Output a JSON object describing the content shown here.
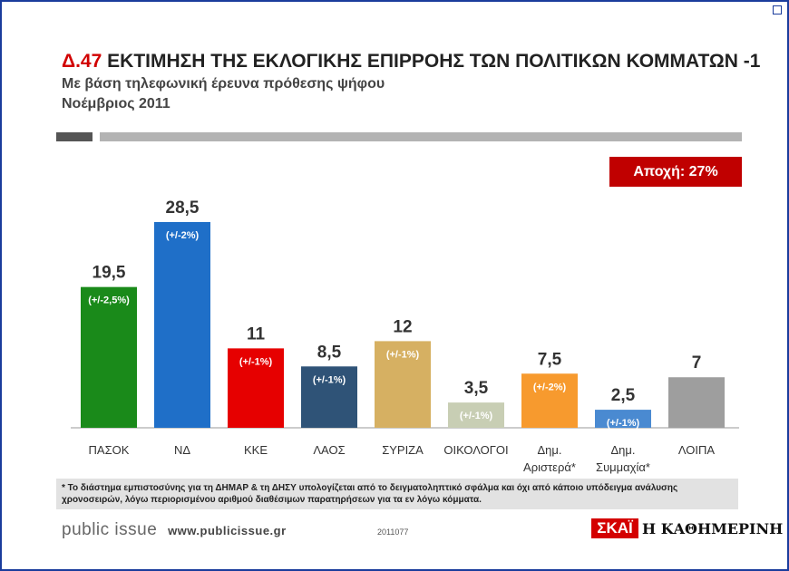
{
  "header": {
    "code": "Δ.47",
    "title": "ΕΚΤΙΜΗΣΗ ΤΗΣ ΕΚΛΟΓΙΚΗΣ ΕΠΙΡΡΟΗΣ ΤΩΝ ΠΟΛΙΤΙΚΩΝ ΚΟΜΜΑΤΩΝ -1",
    "subtitle": "Με βάση τηλεφωνική έρευνα πρόθεσης ψήφου",
    "date": "Νοέμβριος 2011"
  },
  "abstain_label": "Αποχή: 27%",
  "chart_data": {
    "type": "bar",
    "title": "ΕΚΤΙΜΗΣΗ ΤΗΣ ΕΚΛΟΓΙΚΗΣ ΕΠΙΡΡΟΗΣ ΤΩΝ ΠΟΛΙΤΙΚΩΝ ΚΟΜΜΑΤΩΝ -1",
    "ylim": [
      0,
      30
    ],
    "bars": [
      {
        "category": "ΠΑΣΟΚ",
        "value": 19.5,
        "label": "19,5",
        "margin": "(+/-2,5%)",
        "color": "#1a8a1a"
      },
      {
        "category": "ΝΔ",
        "value": 28.5,
        "label": "28,5",
        "margin": "(+/-2%)",
        "color": "#1f6fc8"
      },
      {
        "category": "ΚΚΕ",
        "value": 11,
        "label": "11",
        "margin": "(+/-1%)",
        "color": "#e60000"
      },
      {
        "category": "ΛΑΟΣ",
        "value": 8.5,
        "label": "8,5",
        "margin": "(+/-1%)",
        "color": "#2f5377"
      },
      {
        "category": "ΣΥΡΙΖΑ",
        "value": 12,
        "label": "12",
        "margin": "(+/-1%)",
        "color": "#d6b062"
      },
      {
        "category": "ΟΙΚΟΛΟΓΟΙ",
        "value": 3.5,
        "label": "3,5",
        "margin": "(+/-1%)",
        "color": "#c8ceb4"
      },
      {
        "category": "Δημ. Αριστερά*",
        "line1": "Δημ.",
        "line2": "Αριστερά*",
        "value": 7.5,
        "label": "7,5",
        "margin": "(+/-2%)",
        "color": "#f79a2e"
      },
      {
        "category": "Δημ. Συμμαχία*",
        "line1": "Δημ.",
        "line2": "Συμμαχία*",
        "value": 2.5,
        "label": "2,5",
        "margin": "(+/-1%)",
        "color": "#4a8ad1"
      },
      {
        "category": "ΛΟΙΠΑ",
        "value": 7,
        "label": "7",
        "margin": "",
        "color": "#9e9e9e"
      }
    ]
  },
  "footnote": "* Το διάστημα εμπιστοσύνης για τη ΔΗΜΑΡ & τη ΔΗΣΥ υπολογίζεται από το δειγματοληπτικό σφάλμα και όχι από κάποιο υπόδειγμα ανάλυσης χρονοσειρών, λόγω περιορισμένου αριθμού διαθέσιμων παρατηρήσεων για τα εν λόγω κόμματα.",
  "footer": {
    "brand": "public issue",
    "url": "www.publicissue.gr",
    "code": "2011077",
    "logo1": "ΣΚΑΪ",
    "logo2": "Η ΚΑΘΗΜΕΡΙΝΗ"
  }
}
